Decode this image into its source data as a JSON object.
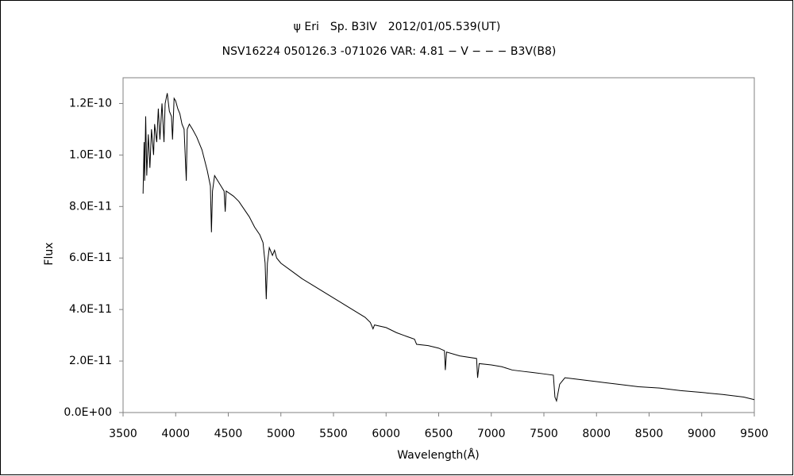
{
  "chart_data": {
    "type": "line",
    "title": "ψ Eri　Sp. B3IV　2012/01/05.539(UT)",
    "subtitle": "NSV16224 050126.3 -071026 VAR: 4.81 − V − − − B3V(B8)",
    "xlabel": "Wavelength(Å)",
    "ylabel": "Flux",
    "color": "#000000",
    "xlim": [
      3500,
      9500
    ],
    "xticks": [
      3500,
      4000,
      4500,
      5000,
      5500,
      6000,
      6500,
      7000,
      7500,
      8000,
      8500,
      9000,
      9500
    ],
    "ylim": [
      0,
      1.3e-10
    ],
    "yticks": [
      {
        "value": 0,
        "label": "0.0E+00"
      },
      {
        "value": 2e-11,
        "label": "2.0E-11"
      },
      {
        "value": 4e-11,
        "label": "4.0E-11"
      },
      {
        "value": 6e-11,
        "label": "6.0E-11"
      },
      {
        "value": 8e-11,
        "label": "8.0E-11"
      },
      {
        "value": 1e-10,
        "label": "1.0E-10"
      },
      {
        "value": 1.2e-10,
        "label": "1.2E-10"
      }
    ],
    "grid": false,
    "x": [
      3690,
      3700,
      3705,
      3715,
      3725,
      3740,
      3755,
      3770,
      3790,
      3800,
      3820,
      3835,
      3850,
      3870,
      3889,
      3900,
      3920,
      3940,
      3960,
      3970,
      3985,
      4000,
      4020,
      4040,
      4060,
      4080,
      4101,
      4110,
      4130,
      4160,
      4200,
      4250,
      4300,
      4330,
      4340,
      4350,
      4370,
      4400,
      4430,
      4460,
      4471,
      4480,
      4550,
      4600,
      4650,
      4700,
      4750,
      4800,
      4830,
      4850,
      4861,
      4872,
      4890,
      4920,
      4940,
      4960,
      5000,
      5100,
      5200,
      5300,
      5400,
      5500,
      5600,
      5700,
      5800,
      5850,
      5876,
      5890,
      6000,
      6100,
      6200,
      6270,
      6290,
      6400,
      6500,
      6555,
      6563,
      6575,
      6700,
      6860,
      6870,
      6885,
      7000,
      7100,
      7200,
      7300,
      7400,
      7500,
      7590,
      7605,
      7620,
      7650,
      7700,
      7800,
      7900,
      8000,
      8200,
      8400,
      8600,
      8800,
      9000,
      9200,
      9400,
      9500
    ],
    "values": [
      8.5e-11,
      1.05e-10,
      9e-11,
      1.15e-10,
      9.2e-11,
      1.08e-10,
      9.5e-11,
      1.1e-10,
      1e-10,
      1.12e-10,
      1.05e-10,
      1.18e-10,
      1.06e-10,
      1.2e-10,
      1.05e-10,
      1.2e-10,
      1.24e-10,
      1.17e-10,
      1.15e-10,
      1.06e-10,
      1.22e-10,
      1.21e-10,
      1.18e-10,
      1.16e-10,
      1.12e-10,
      1.1e-10,
      9e-11,
      1.1e-10,
      1.12e-10,
      1.1e-10,
      1.07e-10,
      1.02e-10,
      9.4e-11,
      8.8e-11,
      7e-11,
      8.6e-11,
      9.2e-11,
      9e-11,
      8.8e-11,
      8.6e-11,
      7.8e-11,
      8.6e-11,
      8.4e-11,
      8.2e-11,
      7.9e-11,
      7.6e-11,
      7.2e-11,
      6.9e-11,
      6.6e-11,
      5.8e-11,
      4.4e-11,
      5.8e-11,
      6.4e-11,
      6.1e-11,
      6.3e-11,
      6e-11,
      5.8e-11,
      5.5e-11,
      5.2e-11,
      4.95e-11,
      4.7e-11,
      4.45e-11,
      4.2e-11,
      3.95e-11,
      3.7e-11,
      3.5e-11,
      3.25e-11,
      3.4e-11,
      3.3e-11,
      3.1e-11,
      2.95e-11,
      2.85e-11,
      2.65e-11,
      2.6e-11,
      2.5e-11,
      2.4e-11,
      1.65e-11,
      2.35e-11,
      2.2e-11,
      2.1e-11,
      1.35e-11,
      1.9e-11,
      1.85e-11,
      1.78e-11,
      1.65e-11,
      1.6e-11,
      1.55e-11,
      1.5e-11,
      1.45e-11,
      6e-12,
      4.5e-12,
      1.1e-11,
      1.35e-11,
      1.3e-11,
      1.25e-11,
      1.2e-11,
      1.1e-11,
      1e-11,
      9.5e-12,
      8.5e-12,
      7.8e-12,
      7e-12,
      6e-12,
      5e-12
    ]
  }
}
